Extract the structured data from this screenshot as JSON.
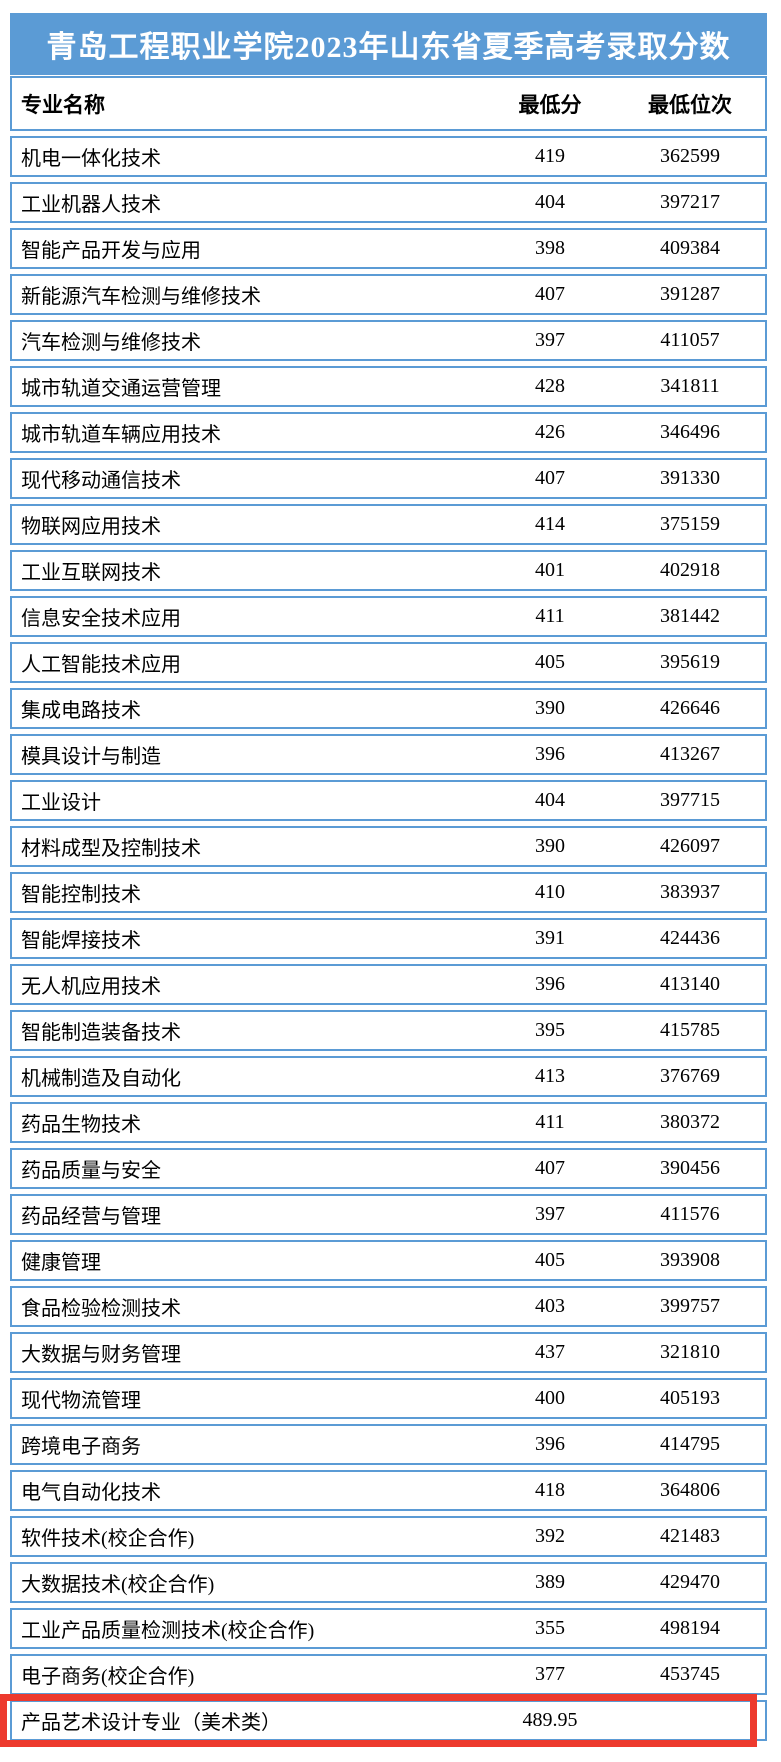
{
  "title": "青岛工程职业学院2023年山东省夏季高考录取分数",
  "colors": {
    "header_blue": "#5B9BD5",
    "border_blue": "#5B9BD5",
    "highlight_red": "#ED3A2E",
    "title_text": "#FFFFFF",
    "body_text": "#000000"
  },
  "table": {
    "headers": [
      "专业名称",
      "最低分",
      "最低位次"
    ],
    "rows": [
      {
        "major": "机电一体化技术",
        "min_score": "419",
        "min_rank": "362599",
        "highlighted": false
      },
      {
        "major": "工业机器人技术",
        "min_score": "404",
        "min_rank": "397217",
        "highlighted": false
      },
      {
        "major": "智能产品开发与应用",
        "min_score": "398",
        "min_rank": "409384",
        "highlighted": false
      },
      {
        "major": "新能源汽车检测与维修技术",
        "min_score": "407",
        "min_rank": "391287",
        "highlighted": false
      },
      {
        "major": "汽车检测与维修技术",
        "min_score": "397",
        "min_rank": "411057",
        "highlighted": false
      },
      {
        "major": "城市轨道交通运营管理",
        "min_score": "428",
        "min_rank": "341811",
        "highlighted": false
      },
      {
        "major": "城市轨道车辆应用技术",
        "min_score": "426",
        "min_rank": "346496",
        "highlighted": false
      },
      {
        "major": "现代移动通信技术",
        "min_score": "407",
        "min_rank": "391330",
        "highlighted": false
      },
      {
        "major": "物联网应用技术",
        "min_score": "414",
        "min_rank": "375159",
        "highlighted": false
      },
      {
        "major": "工业互联网技术",
        "min_score": "401",
        "min_rank": "402918",
        "highlighted": false
      },
      {
        "major": "信息安全技术应用",
        "min_score": "411",
        "min_rank": "381442",
        "highlighted": false
      },
      {
        "major": "人工智能技术应用",
        "min_score": "405",
        "min_rank": "395619",
        "highlighted": false
      },
      {
        "major": "集成电路技术",
        "min_score": "390",
        "min_rank": "426646",
        "highlighted": false
      },
      {
        "major": "模具设计与制造",
        "min_score": "396",
        "min_rank": "413267",
        "highlighted": false
      },
      {
        "major": "工业设计",
        "min_score": "404",
        "min_rank": "397715",
        "highlighted": false
      },
      {
        "major": "材料成型及控制技术",
        "min_score": "390",
        "min_rank": "426097",
        "highlighted": false
      },
      {
        "major": "智能控制技术",
        "min_score": "410",
        "min_rank": "383937",
        "highlighted": false
      },
      {
        "major": "智能焊接技术",
        "min_score": "391",
        "min_rank": "424436",
        "highlighted": false
      },
      {
        "major": "无人机应用技术",
        "min_score": "396",
        "min_rank": "413140",
        "highlighted": false
      },
      {
        "major": "智能制造装备技术",
        "min_score": "395",
        "min_rank": "415785",
        "highlighted": false
      },
      {
        "major": "机械制造及自动化",
        "min_score": "413",
        "min_rank": "376769",
        "highlighted": false
      },
      {
        "major": "药品生物技术",
        "min_score": "411",
        "min_rank": "380372",
        "highlighted": false
      },
      {
        "major": "药品质量与安全",
        "min_score": "407",
        "min_rank": "390456",
        "highlighted": false
      },
      {
        "major": "药品经营与管理",
        "min_score": "397",
        "min_rank": "411576",
        "highlighted": false
      },
      {
        "major": "健康管理",
        "min_score": "405",
        "min_rank": "393908",
        "highlighted": false
      },
      {
        "major": "食品检验检测技术",
        "min_score": "403",
        "min_rank": "399757",
        "highlighted": false
      },
      {
        "major": "大数据与财务管理",
        "min_score": "437",
        "min_rank": "321810",
        "highlighted": false
      },
      {
        "major": "现代物流管理",
        "min_score": "400",
        "min_rank": "405193",
        "highlighted": false
      },
      {
        "major": "跨境电子商务",
        "min_score": "396",
        "min_rank": "414795",
        "highlighted": false
      },
      {
        "major": "电气自动化技术",
        "min_score": "418",
        "min_rank": "364806",
        "highlighted": false
      },
      {
        "major": "软件技术(校企合作)",
        "min_score": "392",
        "min_rank": "421483",
        "highlighted": false
      },
      {
        "major": "大数据技术(校企合作)",
        "min_score": "389",
        "min_rank": "429470",
        "highlighted": false
      },
      {
        "major": "工业产品质量检测技术(校企合作)",
        "min_score": "355",
        "min_rank": "498194",
        "highlighted": false
      },
      {
        "major": "电子商务(校企合作)",
        "min_score": "377",
        "min_rank": "453745",
        "highlighted": false
      },
      {
        "major": "产品艺术设计专业（美术类）",
        "min_score": "489.95",
        "min_rank": "",
        "highlighted": true
      }
    ]
  }
}
